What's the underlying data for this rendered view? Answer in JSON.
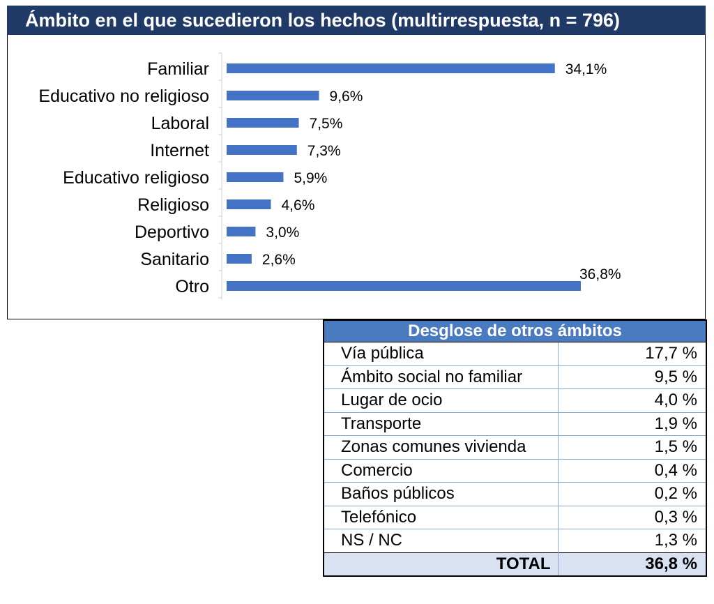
{
  "chart_data": {
    "type": "bar",
    "orientation": "horizontal",
    "title": "Ámbito en el que sucedieron los hechos (multirrespuesta, n = 796)",
    "categories": [
      "Familiar",
      "Educativo no religioso",
      "Laboral",
      "Internet",
      "Educativo religioso",
      "Religioso",
      "Deportivo",
      "Sanitario",
      "Otro"
    ],
    "values": [
      34.1,
      9.6,
      7.5,
      7.3,
      5.9,
      4.6,
      3.0,
      2.6,
      36.8
    ],
    "value_labels": [
      "34,1%",
      "9,6%",
      "7,5%",
      "7,3%",
      "5,9%",
      "4,6%",
      "3,0%",
      "2,6%",
      "36,8%"
    ],
    "unit": "%",
    "xlim": [
      0,
      40
    ],
    "bar_color": "#4472c4",
    "title_bg": "#1f3a66",
    "grid": false
  },
  "breakdown": {
    "title": "Desglose de otros ámbitos",
    "rows": [
      {
        "label": "Vía pública",
        "value": "17,7 %"
      },
      {
        "label": "Ámbito social no familiar",
        "value": "9,5 %"
      },
      {
        "label": "Lugar de ocio",
        "value": "4,0 %"
      },
      {
        "label": "Transporte",
        "value": "1,9 %"
      },
      {
        "label": "Zonas comunes vivienda",
        "value": "1,5 %"
      },
      {
        "label": "Comercio",
        "value": "0,4 %"
      },
      {
        "label": "Baños públicos",
        "value": "0,2 %"
      },
      {
        "label": "Telefónico",
        "value": "0,3 %"
      },
      {
        "label": "NS / NC",
        "value": "1,3 %"
      }
    ],
    "total_label": "TOTAL",
    "total_value": "36,8 %",
    "header_bg": "#4a7ac0",
    "total_bg": "#d9e2f2"
  }
}
